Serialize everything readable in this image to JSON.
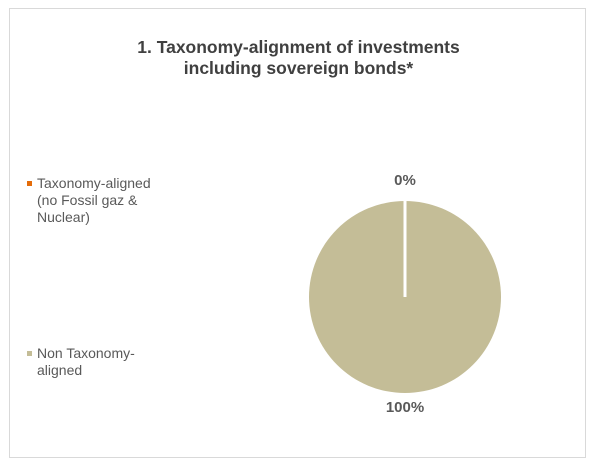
{
  "chart_data": {
    "type": "pie",
    "title_lines": [
      "1. Taxonomy-alignment of investments",
      "including sovereign bonds*"
    ],
    "slices": [
      {
        "name": "Taxonomy-aligned\n(no Fossil gaz &\nNuclear)",
        "value": 0,
        "label": "0%",
        "color": "#E46C0A"
      },
      {
        "name": "Non Taxonomy-\naligned",
        "value": 100,
        "label": "100%",
        "color": "#C4BD97"
      }
    ],
    "legend_position": "left"
  }
}
